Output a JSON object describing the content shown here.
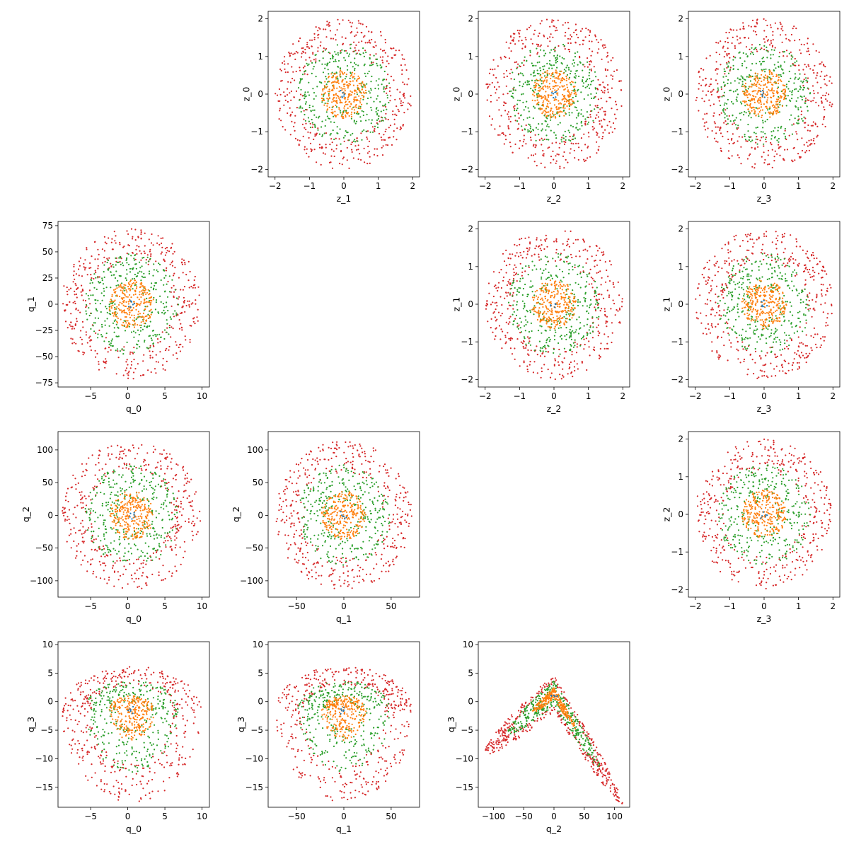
{
  "figure": {
    "colors": {
      "ring_inner": "#ff7f0e",
      "ring_middle": "#2ca02c",
      "ring_outer": "#d62728",
      "ring_core": "#1f77b4"
    }
  },
  "chart_data": [
    {
      "type": "scatter",
      "row": 0,
      "col": 1,
      "xlabel": "z_1",
      "ylabel": "z_0",
      "xlim": [
        -2.2,
        2.2
      ],
      "ylim": [
        -2.2,
        2.2
      ],
      "xticks": [
        -2,
        -1,
        0,
        1,
        2
      ],
      "yticks": [
        -2,
        -1,
        0,
        1,
        2
      ],
      "xticklabels": [
        "−2",
        "−1",
        "0",
        "1",
        "2"
      ],
      "yticklabels": [
        "−2",
        "−1",
        "0",
        "1",
        "2"
      ],
      "shape": "disk",
      "center": [
        0,
        0
      ],
      "spread": [
        1,
        1
      ],
      "radius": [
        0.65,
        1.35,
        2.0
      ]
    },
    {
      "type": "scatter",
      "row": 0,
      "col": 2,
      "xlabel": "z_2",
      "ylabel": "z_0",
      "xlim": [
        -2.2,
        2.2
      ],
      "ylim": [
        -2.2,
        2.2
      ],
      "xticks": [
        -2,
        -1,
        0,
        1,
        2
      ],
      "yticks": [
        -2,
        -1,
        0,
        1,
        2
      ],
      "xticklabels": [
        "−2",
        "−1",
        "0",
        "1",
        "2"
      ],
      "yticklabels": [
        "−2",
        "−1",
        "0",
        "1",
        "2"
      ],
      "shape": "disk",
      "center": [
        0,
        0
      ],
      "spread": [
        1,
        1
      ],
      "radius": [
        0.65,
        1.35,
        2.0
      ]
    },
    {
      "type": "scatter",
      "row": 0,
      "col": 3,
      "xlabel": "z_3",
      "ylabel": "z_0",
      "xlim": [
        -2.2,
        2.2
      ],
      "ylim": [
        -2.2,
        2.2
      ],
      "xticks": [
        -2,
        -1,
        0,
        1,
        2
      ],
      "yticks": [
        -2,
        -1,
        0,
        1,
        2
      ],
      "xticklabels": [
        "−2",
        "−1",
        "0",
        "1",
        "2"
      ],
      "yticklabels": [
        "−2",
        "−1",
        "0",
        "1",
        "2"
      ],
      "shape": "disk",
      "center": [
        0,
        0
      ],
      "spread": [
        1,
        1
      ],
      "radius": [
        0.65,
        1.35,
        2.0
      ]
    },
    {
      "type": "scatter",
      "row": 1,
      "col": 0,
      "xlabel": "q_0",
      "ylabel": "q_1",
      "xlim": [
        -9.4,
        11.0
      ],
      "ylim": [
        -79,
        79
      ],
      "xticks": [
        -5,
        0,
        5,
        10
      ],
      "yticks": [
        -75,
        -50,
        -25,
        0,
        25,
        50,
        75
      ],
      "xticklabels": [
        "−5",
        "0",
        "5",
        "10"
      ],
      "yticklabels": [
        "−75",
        "−50",
        "−25",
        "0",
        "25",
        "50",
        "75"
      ],
      "shape": "disk",
      "center": [
        0.5,
        0
      ],
      "spread": [
        4.7,
        36
      ],
      "radius": [
        0.65,
        1.35,
        2.0
      ]
    },
    {
      "type": "scatter",
      "row": 1,
      "col": 2,
      "xlabel": "z_2",
      "ylabel": "z_1",
      "xlim": [
        -2.2,
        2.2
      ],
      "ylim": [
        -2.2,
        2.2
      ],
      "xticks": [
        -2,
        -1,
        0,
        1,
        2
      ],
      "yticks": [
        -2,
        -1,
        0,
        1,
        2
      ],
      "xticklabels": [
        "−2",
        "−1",
        "0",
        "1",
        "2"
      ],
      "yticklabels": [
        "−2",
        "−1",
        "0",
        "1",
        "2"
      ],
      "shape": "disk",
      "center": [
        0,
        0
      ],
      "spread": [
        1,
        1
      ],
      "radius": [
        0.65,
        1.35,
        2.0
      ]
    },
    {
      "type": "scatter",
      "row": 1,
      "col": 3,
      "xlabel": "z_3",
      "ylabel": "z_1",
      "xlim": [
        -2.2,
        2.2
      ],
      "ylim": [
        -2.2,
        2.2
      ],
      "xticks": [
        -2,
        -1,
        0,
        1,
        2
      ],
      "yticks": [
        -2,
        -1,
        0,
        1,
        2
      ],
      "xticklabels": [
        "−2",
        "−1",
        "0",
        "1",
        "2"
      ],
      "yticklabels": [
        "−2",
        "−1",
        "0",
        "1",
        "2"
      ],
      "shape": "disk",
      "center": [
        0,
        0
      ],
      "spread": [
        1,
        1
      ],
      "radius": [
        0.65,
        1.35,
        2.0
      ]
    },
    {
      "type": "scatter",
      "row": 2,
      "col": 0,
      "xlabel": "q_0",
      "ylabel": "q_2",
      "xlim": [
        -9.4,
        11.0
      ],
      "ylim": [
        -125,
        128
      ],
      "xticks": [
        -5,
        0,
        5,
        10
      ],
      "yticks": [
        -100,
        -50,
        0,
        50,
        100
      ],
      "xticklabels": [
        "−5",
        "0",
        "5",
        "10"
      ],
      "yticklabels": [
        "−100",
        "−50",
        "0",
        "50",
        "100"
      ],
      "shape": "disk",
      "center": [
        0.5,
        0
      ],
      "spread": [
        4.7,
        57
      ],
      "radius": [
        0.65,
        1.35,
        2.0
      ]
    },
    {
      "type": "scatter",
      "row": 2,
      "col": 1,
      "xlabel": "q_1",
      "ylabel": "q_2",
      "xlim": [
        -80,
        80
      ],
      "ylim": [
        -125,
        128
      ],
      "xticks": [
        -50,
        0,
        50
      ],
      "yticks": [
        -100,
        -50,
        0,
        50,
        100
      ],
      "xticklabels": [
        "−50",
        "0",
        "50"
      ],
      "yticklabels": [
        "−100",
        "−50",
        "0",
        "50",
        "100"
      ],
      "shape": "disk",
      "center": [
        0,
        0
      ],
      "spread": [
        36,
        57
      ],
      "radius": [
        0.65,
        1.35,
        2.0
      ]
    },
    {
      "type": "scatter",
      "row": 2,
      "col": 3,
      "xlabel": "z_3",
      "ylabel": "z_2",
      "xlim": [
        -2.2,
        2.2
      ],
      "ylim": [
        -2.2,
        2.2
      ],
      "xticks": [
        -2,
        -1,
        0,
        1,
        2
      ],
      "yticks": [
        -2,
        -1,
        0,
        1,
        2
      ],
      "xticklabels": [
        "−2",
        "−1",
        "0",
        "1",
        "2"
      ],
      "yticklabels": [
        "−2",
        "−1",
        "0",
        "1",
        "2"
      ],
      "shape": "disk",
      "center": [
        0,
        0
      ],
      "spread": [
        1,
        1
      ],
      "radius": [
        0.65,
        1.35,
        2.0
      ]
    },
    {
      "type": "scatter",
      "row": 3,
      "col": 0,
      "xlabel": "q_0",
      "ylabel": "q_3",
      "xlim": [
        -9.4,
        11.0
      ],
      "ylim": [
        -18.5,
        10.5
      ],
      "xticks": [
        -5,
        0,
        5,
        10
      ],
      "yticks": [
        -15,
        -10,
        -5,
        0,
        5,
        10
      ],
      "xticklabels": [
        "−5",
        "0",
        "5",
        "10"
      ],
      "yticklabels": [
        "−15",
        "−10",
        "−5",
        "0",
        "5",
        "10"
      ],
      "shape": "blob",
      "center": [
        0.5,
        -1.5
      ],
      "spread": [
        4.7,
        7.0
      ],
      "radius": [
        0.65,
        1.35,
        2.0
      ]
    },
    {
      "type": "scatter",
      "row": 3,
      "col": 1,
      "xlabel": "q_1",
      "ylabel": "q_3",
      "xlim": [
        -80,
        80
      ],
      "ylim": [
        -18.5,
        10.5
      ],
      "xticks": [
        -50,
        0,
        50
      ],
      "yticks": [
        -15,
        -10,
        -5,
        0,
        5,
        10
      ],
      "xticklabels": [
        "−50",
        "0",
        "50"
      ],
      "yticklabels": [
        "−15",
        "−10",
        "−5",
        "0",
        "5",
        "10"
      ],
      "shape": "blob",
      "center": [
        0,
        -1.5
      ],
      "spread": [
        36,
        7.0
      ],
      "radius": [
        0.65,
        1.35,
        2.0
      ]
    },
    {
      "type": "scatter",
      "row": 3,
      "col": 2,
      "xlabel": "q_2",
      "ylabel": "q_3",
      "xlim": [
        -125,
        125
      ],
      "ylim": [
        -18.5,
        10.5
      ],
      "xticks": [
        -100,
        -50,
        0,
        50,
        100
      ],
      "yticks": [
        -15,
        -10,
        -5,
        0,
        5,
        10
      ],
      "xticklabels": [
        "−100",
        "−50",
        "0",
        "50",
        "100"
      ],
      "yticklabels": [
        "−15",
        "−10",
        "−5",
        "0",
        "5",
        "10"
      ],
      "shape": "arch",
      "center": [
        0,
        2
      ],
      "spread": [
        57,
        1
      ],
      "radius": [
        0.65,
        1.35,
        2.0
      ]
    }
  ]
}
